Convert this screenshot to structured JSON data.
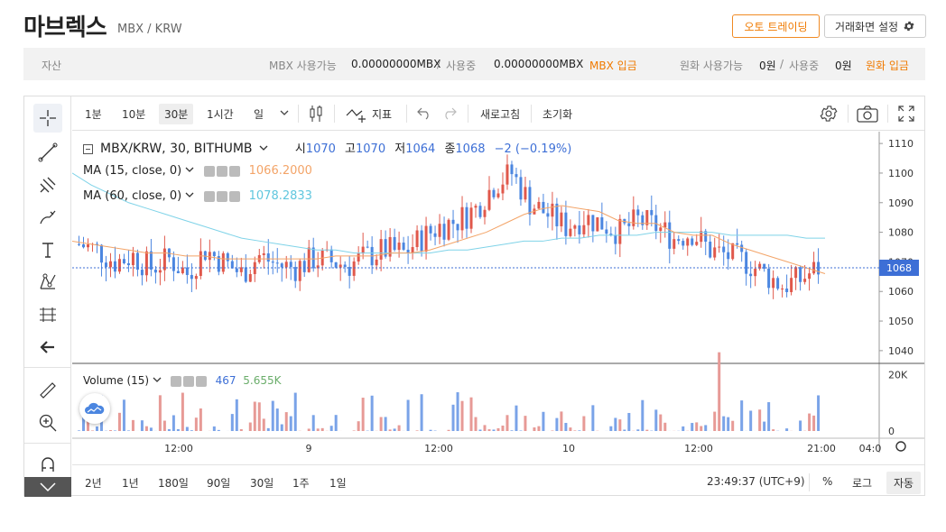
{
  "header": {
    "title": "마브렉스",
    "pair": "MBX / KRW",
    "auto_trade_label": "오토 트레이딩",
    "settings_label": "거래화면 설정"
  },
  "assets": {
    "label": "자산",
    "mbx_available_label": "MBX 사용가능",
    "mbx_available_value": "0.00000000MBX",
    "slash": "/",
    "in_use_label": "사용중",
    "mbx_in_use_value": "0.00000000MBX",
    "mbx_deposit": "MBX 입금",
    "krw_available_label": "원화 사용가능",
    "krw_available_value": "0원",
    "krw_in_use_value": "0원",
    "krw_deposit": "원화 입금"
  },
  "toolbar": {
    "intervals": [
      "1분",
      "10분",
      "30분",
      "1시간",
      "일"
    ],
    "selected_interval": "30분",
    "indicator_label": "지표",
    "refresh_label": "새로고침",
    "reset_label": "초기화"
  },
  "chart_legend": {
    "symbol": "MBX/KRW, 30, BITHUMB",
    "open_label": "시",
    "open": "1070",
    "high_label": "고",
    "high": "1070",
    "low_label": "저",
    "low": "1064",
    "close_label": "종",
    "close": "1068",
    "change": "−2 (−0.19%)",
    "ma15_label": "MA (15, close, 0)",
    "ma15_value": "1066.2000",
    "ma60_label": "MA (60, close, 0)",
    "ma60_value": "1078.2833",
    "volume_label": "Volume (15)",
    "volume_value": "467",
    "volume_ma": "5.655K",
    "last_price_tag": "1068"
  },
  "price_axis": [
    "1110",
    "1100",
    "1090",
    "1080",
    "1070",
    "1060",
    "1050",
    "1040"
  ],
  "volume_axis": [
    "20K",
    "0"
  ],
  "time_axis": [
    "12:00",
    "9",
    "12:00",
    "10",
    "12:00",
    "21:00",
    "04:0"
  ],
  "range_bar": {
    "ranges": [
      "2년",
      "1년",
      "180일",
      "90일",
      "30일",
      "1주",
      "1일"
    ],
    "clock": "23:49:37 (UTC+9)",
    "percent": "%",
    "log": "로그",
    "auto": "자동"
  },
  "colors": {
    "up": "#e0584b",
    "down": "#4b86e0",
    "ma15": "#f3a468",
    "ma60": "#7fd3e8",
    "accent": "#f07a00"
  },
  "chart_data": {
    "type": "candlestick",
    "series": [
      {
        "name": "MA (15, close, 0)",
        "values": [
          1077,
          1076,
          1075,
          1074,
          1073,
          1073,
          1072,
          1072,
          1071,
          1071,
          1071,
          1071,
          1071,
          1071,
          1072,
          1072,
          1072,
          1073,
          1073,
          1074,
          1076,
          1078,
          1080,
          1083,
          1086,
          1088,
          1089,
          1088,
          1087,
          1084,
          1083,
          1083,
          1080,
          1079,
          1079,
          1076,
          1074,
          1072,
          1070,
          1068,
          1066
        ]
      },
      {
        "name": "MA (60, close, 0)",
        "values": [
          1100,
          1096,
          1093,
          1090,
          1088,
          1086,
          1084,
          1082,
          1080,
          1078,
          1077,
          1076,
          1075,
          1074,
          1074,
          1073,
          1073,
          1073,
          1073,
          1073,
          1074,
          1074,
          1075,
          1076,
          1077,
          1077,
          1078,
          1078,
          1079,
          1079,
          1079,
          1080,
          1080,
          1080,
          1080,
          1079,
          1079,
          1079,
          1079,
          1078,
          1078
        ]
      }
    ],
    "ylim": [
      1036,
      1114
    ],
    "volume_ylim": [
      0,
      25000
    ]
  }
}
